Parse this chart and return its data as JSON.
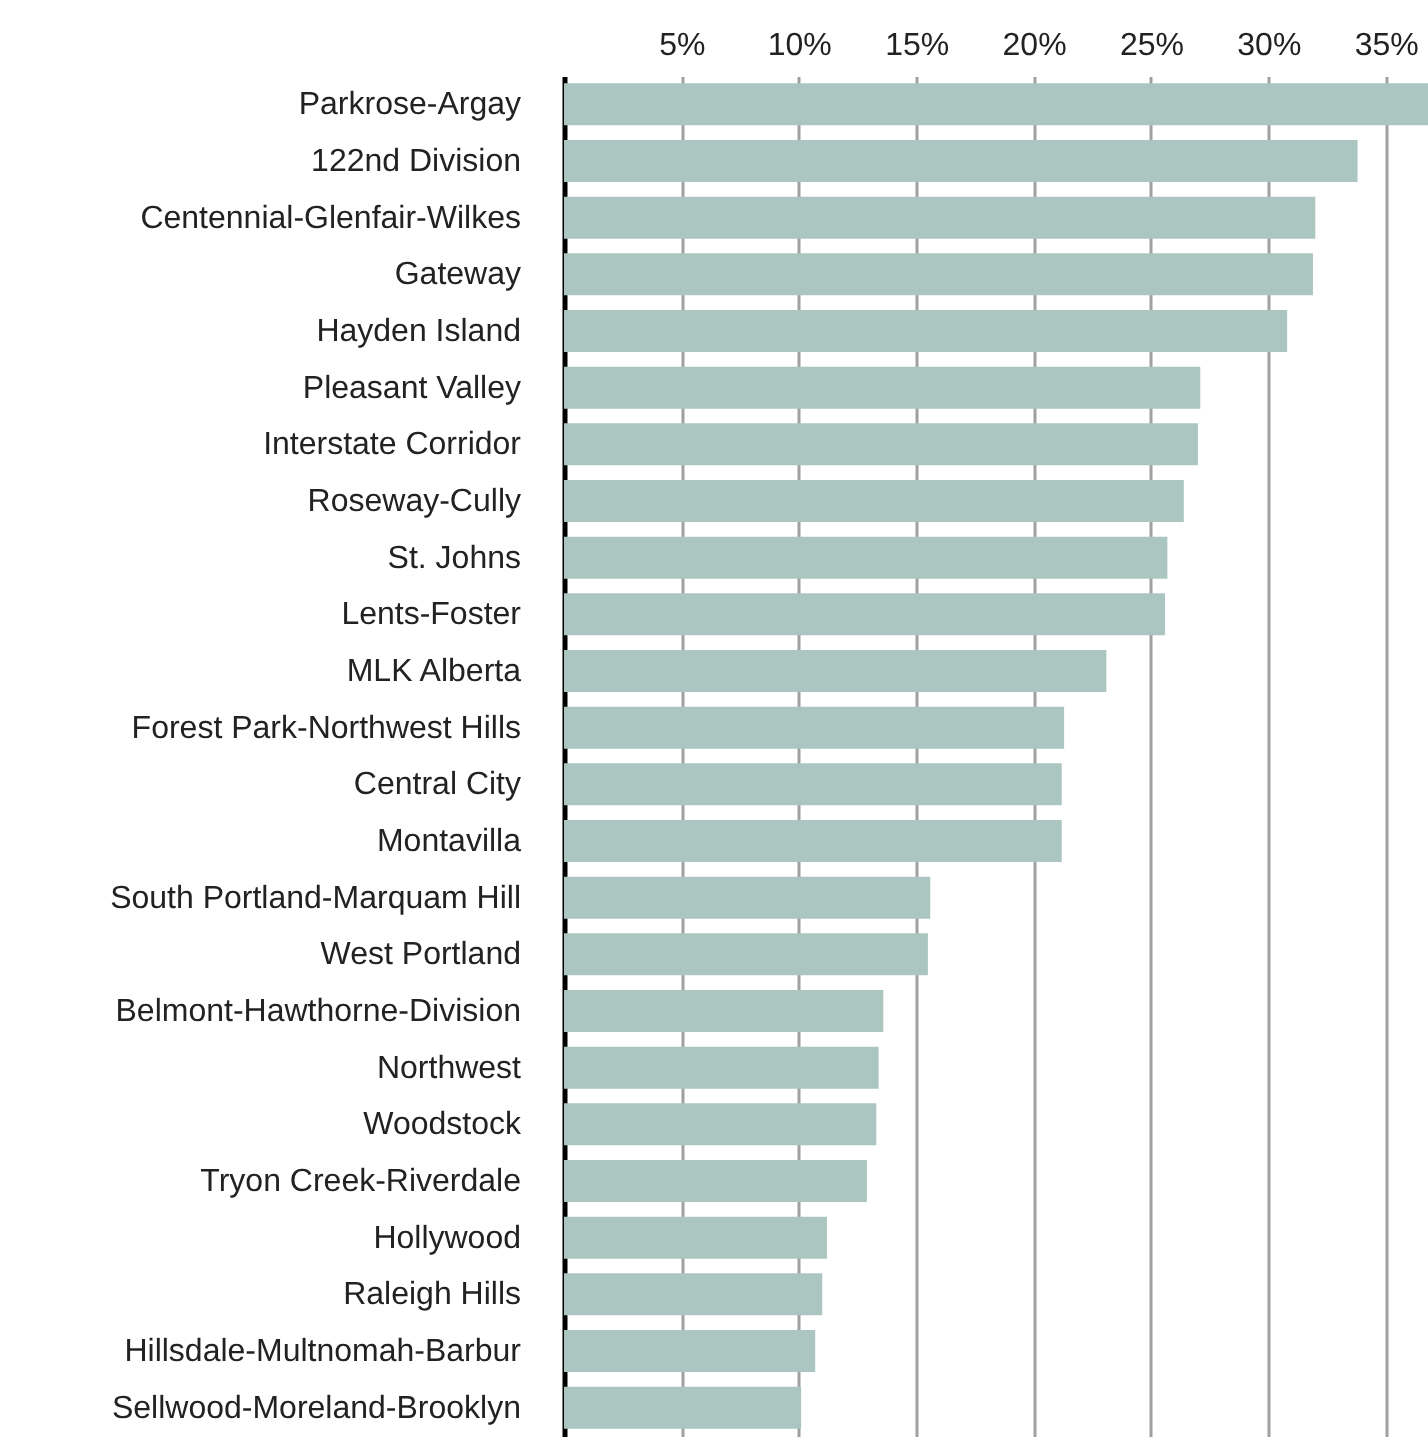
{
  "chart_data": {
    "type": "bar",
    "orientation": "horizontal",
    "categories": [
      "Parkrose-Argay",
      "122nd Division",
      "Centennial-Glenfair-Wilkes",
      "Gateway",
      "Hayden Island",
      "Pleasant Valley",
      "Interstate Corridor",
      "Roseway-Cully",
      "St. Johns",
      "Lents-Foster",
      "MLK Alberta",
      "Forest Park-Northwest Hills",
      "Central City",
      "Montavilla",
      "South Portland-Marquam Hill",
      "West Portland",
      "Belmont-Hawthorne-Division",
      "Northwest",
      "Woodstock",
      "Tryon Creek-Riverdale",
      "Hollywood",
      "Raleigh Hills",
      "Hillsdale-Multnomah-Barbur",
      "Sellwood-Moreland-Brooklyn"
    ],
    "values": [
      36.8,
      33.8,
      32.0,
      31.9,
      30.8,
      27.1,
      27.0,
      26.4,
      25.7,
      25.6,
      23.1,
      21.3,
      21.2,
      21.2,
      15.6,
      15.5,
      13.6,
      13.4,
      13.3,
      12.9,
      11.2,
      11.0,
      10.7,
      10.1
    ],
    "color": "#abc6c1",
    "xlim": [
      0,
      36.8
    ],
    "xticks": [
      {
        "value": 5,
        "label": "5%"
      },
      {
        "value": 10,
        "label": "10%"
      },
      {
        "value": 15,
        "label": "15%"
      },
      {
        "value": 20,
        "label": "20%"
      },
      {
        "value": 25,
        "label": "25%"
      },
      {
        "value": 30,
        "label": "30%"
      },
      {
        "value": 35,
        "label": "35%"
      }
    ],
    "grid": "x"
  }
}
